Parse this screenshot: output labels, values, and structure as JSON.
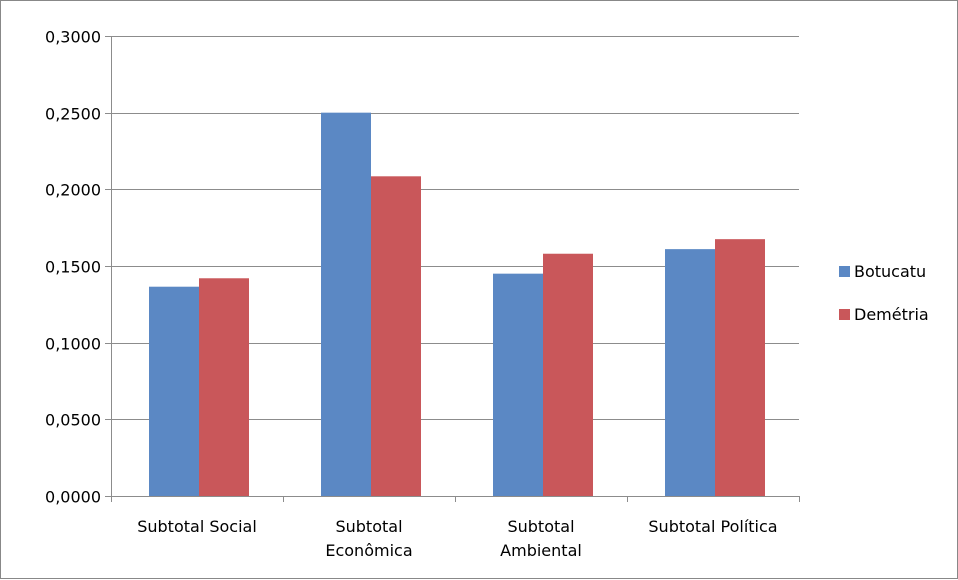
{
  "chart_data": {
    "type": "bar",
    "title": "",
    "xlabel": "",
    "ylabel": "",
    "categories": [
      [
        "Subtotal Social"
      ],
      [
        "Subtotal",
        "Econômica"
      ],
      [
        "Subtotal",
        "Ambiental"
      ],
      [
        "Subtotal Política"
      ]
    ],
    "series": [
      {
        "name": "Botucatu",
        "color": "#5B88C4",
        "values": [
          0.1365,
          0.25,
          0.145,
          0.161
        ]
      },
      {
        "name": "Demétria",
        "color": "#C9575A",
        "values": [
          0.142,
          0.2085,
          0.158,
          0.1675
        ]
      }
    ],
    "ylim": [
      0,
      0.3
    ],
    "yticks": [
      0,
      0.05,
      0.1,
      0.15,
      0.2,
      0.25,
      0.3
    ],
    "ytick_labels": [
      "0,0000",
      "0,0500",
      "0,1000",
      "0,1500",
      "0,2000",
      "0,2500",
      "0,3000"
    ],
    "grid": true,
    "legend": "right"
  }
}
